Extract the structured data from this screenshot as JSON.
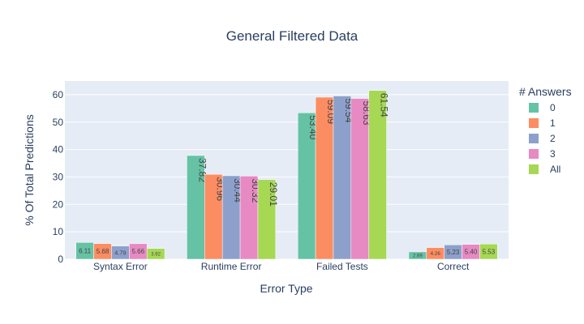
{
  "chart_data": {
    "type": "bar",
    "title": "General Filtered Data",
    "xlabel": "Error Type",
    "ylabel": "% Of Total Predictions",
    "ylim": [
      0,
      65
    ],
    "yticks": [
      0,
      10,
      20,
      30,
      40,
      50,
      60
    ],
    "grid": true,
    "legend_title": "# Answers",
    "legend_position": "right",
    "categories": [
      "Syntax Error",
      "Runtime Error",
      "Failed Tests",
      "Correct"
    ],
    "series": [
      {
        "name": "0",
        "color": "#66c2a5",
        "values": [
          6.11,
          37.82,
          53.4,
          2.69
        ],
        "labels": [
          "6.11",
          "37.82",
          "53.40",
          "2.69"
        ]
      },
      {
        "name": "1",
        "color": "#fc8d62",
        "values": [
          5.68,
          30.96,
          59.09,
          4.26
        ],
        "labels": [
          "5.68",
          "30.96",
          "59.09",
          "4.26"
        ]
      },
      {
        "name": "2",
        "color": "#8da0cb",
        "values": [
          4.79,
          30.44,
          59.54,
          5.23
        ],
        "labels": [
          "4.79",
          "30.44",
          "59.54",
          "5.23"
        ]
      },
      {
        "name": "3",
        "color": "#e78ac3",
        "values": [
          5.66,
          30.32,
          58.63,
          5.4
        ],
        "labels": [
          "5.66",
          "30.32",
          "58.63",
          "5.40"
        ]
      },
      {
        "name": "All",
        "color": "#a6d854",
        "values": [
          3.92,
          29.01,
          61.54,
          5.53
        ],
        "labels": [
          "3.92",
          "29.01",
          "61.54",
          "5.53"
        ]
      }
    ]
  }
}
